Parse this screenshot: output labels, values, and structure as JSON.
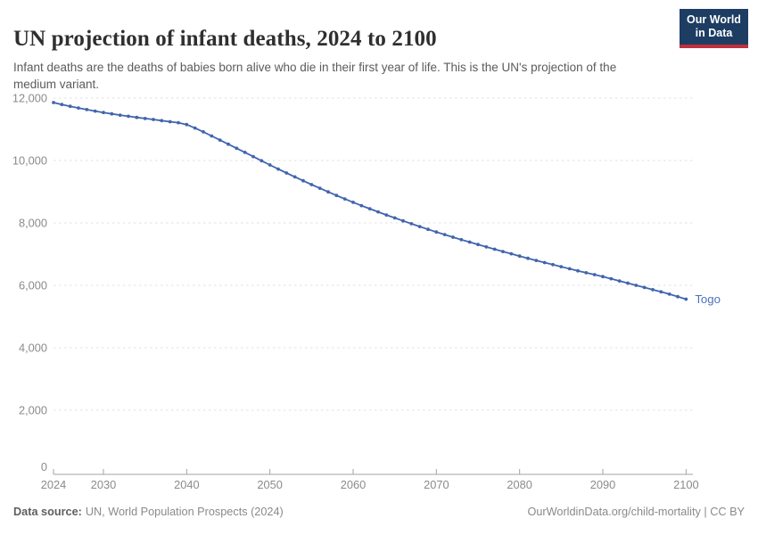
{
  "header": {
    "title": "UN projection of infant deaths, 2024 to 2100",
    "subtitle": "Infant deaths are the deaths of babies born alive who die in their first year of life. This is the UN's projection of the medium variant.",
    "logo": {
      "line1": "Our World",
      "line2": "in Data",
      "bg_color": "#1d3d63",
      "stripe_color": "#c1303c"
    }
  },
  "footer": {
    "source_label": "Data source:",
    "source_value": "UN, World Population Prospects (2024)",
    "credit": "OurWorldinData.org/child-mortality | CC BY"
  },
  "colors": {
    "grid": "#e1e1e1",
    "axis": "#a3a3a3",
    "tick_text": "#8b8b8b",
    "title_text": "#2f2f2f",
    "subtitle_text": "#5b5b5b"
  },
  "chart_data": {
    "type": "line",
    "title": "UN projection of infant deaths, 2024 to 2100",
    "xlabel": "",
    "ylabel": "",
    "xlim": [
      2024,
      2101
    ],
    "ylim": [
      0,
      12000
    ],
    "grid": "horizontal-dashed",
    "legend_position": "end-of-line-label",
    "x_ticks": [
      2024,
      2030,
      2040,
      2050,
      2060,
      2070,
      2080,
      2090,
      2100
    ],
    "y_ticks": [
      0,
      2000,
      4000,
      6000,
      8000,
      10000,
      12000
    ],
    "y_tick_labels": [
      "0",
      "2,000",
      "4,000",
      "6,000",
      "8,000",
      "10,000",
      "12,000"
    ],
    "series": [
      {
        "name": "Togo",
        "color": "#4165ad",
        "label_color": "#4d72b9",
        "x": [
          2024,
          2025,
          2026,
          2027,
          2028,
          2029,
          2030,
          2031,
          2032,
          2033,
          2034,
          2035,
          2036,
          2037,
          2038,
          2039,
          2040,
          2041,
          2042,
          2043,
          2044,
          2045,
          2046,
          2047,
          2048,
          2049,
          2050,
          2051,
          2052,
          2053,
          2054,
          2055,
          2056,
          2057,
          2058,
          2059,
          2060,
          2061,
          2062,
          2063,
          2064,
          2065,
          2066,
          2067,
          2068,
          2069,
          2070,
          2071,
          2072,
          2073,
          2074,
          2075,
          2076,
          2077,
          2078,
          2079,
          2080,
          2081,
          2082,
          2083,
          2084,
          2085,
          2086,
          2087,
          2088,
          2089,
          2090,
          2091,
          2092,
          2093,
          2094,
          2095,
          2096,
          2097,
          2098,
          2099,
          2100
        ],
        "values": [
          11857,
          11795,
          11737,
          11683,
          11632,
          11583,
          11536,
          11493,
          11453,
          11416,
          11381,
          11347,
          11313,
          11278,
          11243,
          11210,
          11150,
          11040,
          10916,
          10786,
          10655,
          10524,
          10392,
          10259,
          10125,
          9991,
          9858,
          9727,
          9599,
          9473,
          9350,
          9229,
          9110,
          8993,
          8879,
          8768,
          8660,
          8555,
          8453,
          8353,
          8255,
          8159,
          8065,
          7973,
          7883,
          7795,
          7709,
          7625,
          7543,
          7463,
          7385,
          7308,
          7232,
          7157,
          7083,
          7010,
          6938,
          6867,
          6797,
          6729,
          6662,
          6596,
          6531,
          6467,
          6404,
          6342,
          6281,
          6211,
          6141,
          6071,
          6001,
          5931,
          5861,
          5791,
          5716,
          5636,
          5556
        ]
      }
    ]
  }
}
